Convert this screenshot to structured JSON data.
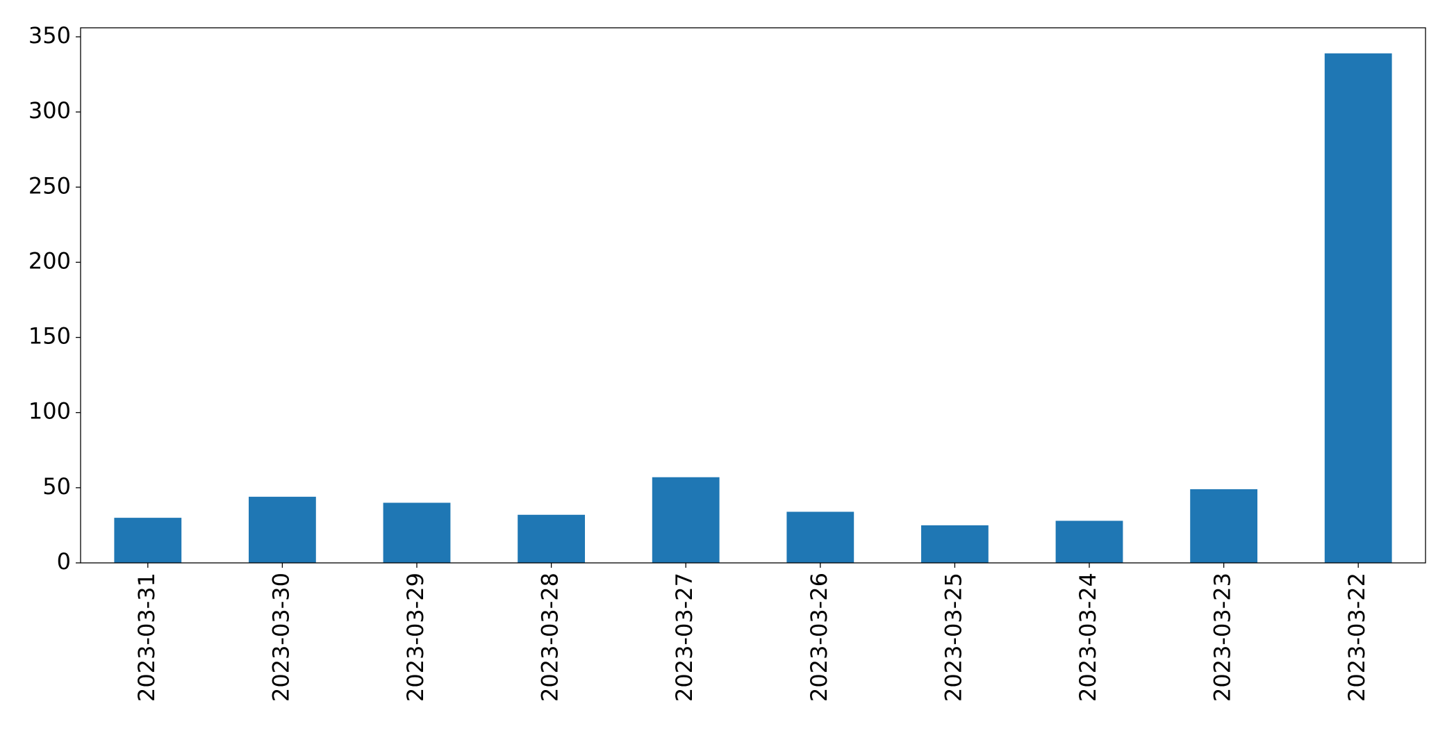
{
  "chart_data": {
    "type": "bar",
    "categories": [
      "2023-03-31",
      "2023-03-30",
      "2023-03-29",
      "2023-03-28",
      "2023-03-27",
      "2023-03-26",
      "2023-03-25",
      "2023-03-24",
      "2023-03-23",
      "2023-03-22"
    ],
    "values": [
      30,
      44,
      40,
      32,
      57,
      34,
      25,
      28,
      49,
      339
    ],
    "color": "#1f77b4",
    "ylim": [
      0,
      356
    ],
    "yticks": [
      0,
      50,
      100,
      150,
      200,
      250,
      300,
      350
    ],
    "grid": false
  }
}
